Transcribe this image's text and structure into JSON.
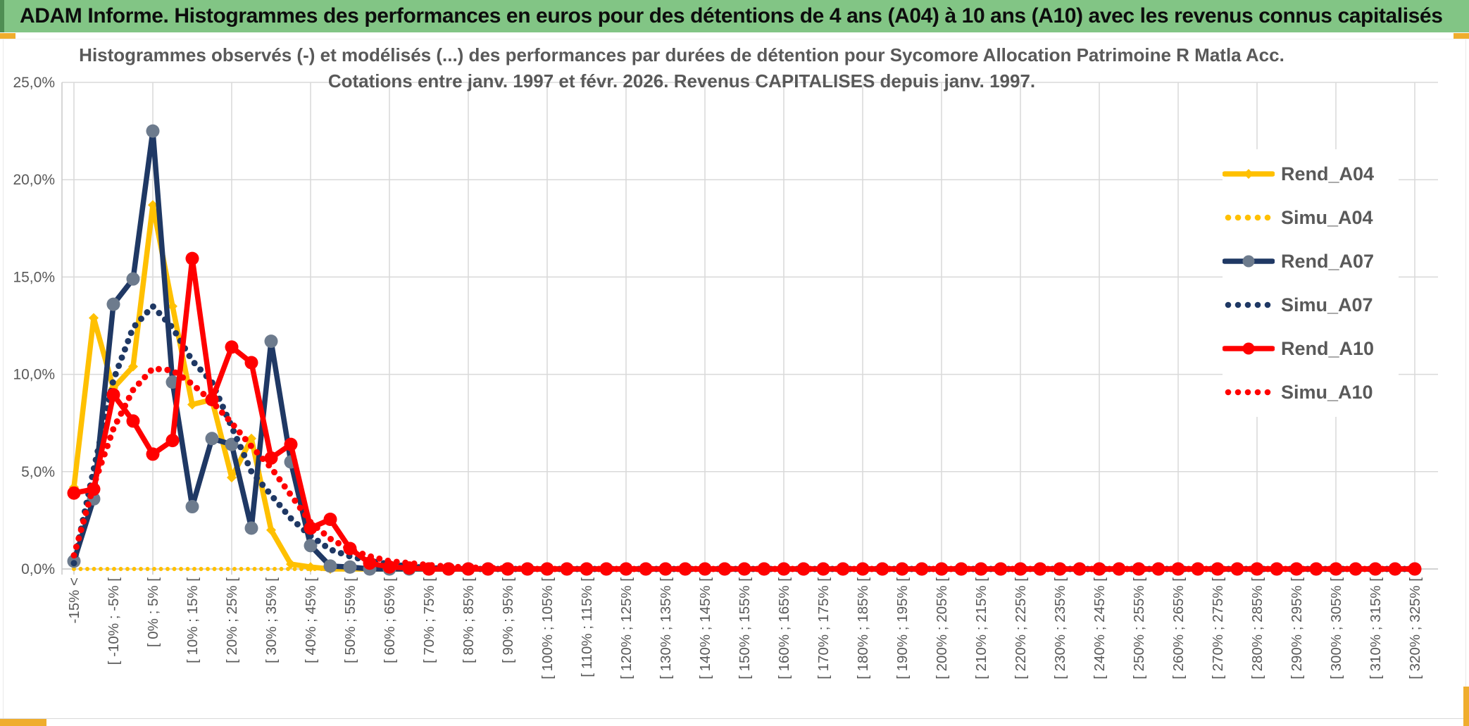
{
  "banner": {
    "title": "ADAM Informe. Histogrammes des performances en euros pour des détentions de 4 ans (A04) à 10 ans (A10) avec les revenus connus capitalisés"
  },
  "chart_data": {
    "type": "line",
    "title_line1": "Histogrammes observés (-) et modélisés (...) des performances par durées de détention pour Sycomore Allocation Patrimoine R Matla Acc.",
    "title_line2": "Cotations entre janv. 1997 et févr. 2026. Revenus CAPITALISES depuis janv. 1997.",
    "ylim": [
      0,
      25
    ],
    "ytick_labels": [
      "0,0%",
      "5,0%",
      "10,0%",
      "15,0%",
      "20,0%",
      "25,0%"
    ],
    "grid": "on",
    "legend_position": "right",
    "n_bins": 69,
    "xtick_every": 2,
    "xtick_labels": [
      "-15% <",
      "[ -10% ; -5% [",
      "[ 0% ; 5% [",
      "[ 10% ; 15% [",
      "[ 20% ; 25% [",
      "[ 30% ; 35% [",
      "[ 40% ; 45% [",
      "[ 50% ; 55% [",
      "[ 60% ; 65% [",
      "[ 70% ; 75% [",
      "[ 80% ; 85% [",
      "[ 90% ; 95% [",
      "[ 100% ; 105% [",
      "[ 110% ; 115% [",
      "[ 120% ; 125% [",
      "[ 130% ; 135% [",
      "[ 140% ; 145% [",
      "[ 150% ; 155% [",
      "[ 160% ; 165% [",
      "[ 170% ; 175% [",
      "[ 180% ; 185% [",
      "[ 190% ; 195% [",
      "[ 200% ; 205% [",
      "[ 210% ; 215% [",
      "[ 220% ; 225% [",
      "[ 230% ; 235% [",
      "[ 240% ; 245% [",
      "[ 250% ; 255% [",
      "[ 260% ; 265% [",
      "[ 270% ; 275% [",
      "[ 280% ; 285% [",
      "[ 290% ; 295% [",
      "[ 300% ; 305% [",
      "[ 310% ; 315% [",
      "[ 320% ; 325% ["
    ],
    "series": [
      {
        "name": "Rend_A04",
        "color": "#FFC000",
        "style": "solid",
        "marker": "diamond",
        "marker_color": "#FFC000",
        "values": [
          4.2,
          12.9,
          9.3,
          10.4,
          18.7,
          13.5,
          8.45,
          8.7,
          4.7,
          6.7,
          2.0,
          0.25,
          0.1,
          0,
          0,
          0,
          0,
          0,
          0,
          0,
          0,
          0,
          0,
          0,
          0,
          0,
          0,
          0,
          0,
          0,
          0,
          0,
          0,
          0,
          0,
          0,
          0,
          0,
          0,
          0,
          0,
          0,
          0,
          0,
          0,
          0,
          0,
          0,
          0,
          0,
          0,
          0,
          0,
          0,
          0,
          0,
          0,
          0,
          0,
          0,
          0,
          0,
          0,
          0,
          0,
          0,
          0,
          0,
          0
        ]
      },
      {
        "name": "Simu_A04",
        "color": "#FFC000",
        "style": "dotted",
        "values": [
          0,
          0,
          0,
          0,
          0,
          0,
          0,
          0,
          0,
          0,
          0,
          0,
          0,
          0,
          0,
          0,
          0,
          0,
          0,
          0,
          0,
          0,
          0,
          0,
          0,
          0,
          0,
          0,
          0,
          0,
          0,
          0,
          0,
          0,
          0,
          0,
          0,
          0,
          0,
          0,
          0,
          0,
          0,
          0,
          0,
          0,
          0,
          0,
          0,
          0,
          0,
          0,
          0,
          0,
          0,
          0,
          0,
          0,
          0,
          0,
          0,
          0,
          0,
          0,
          0,
          0,
          0,
          0,
          0
        ]
      },
      {
        "name": "Rend_A07",
        "color": "#1F3864",
        "style": "solid",
        "marker": "circle",
        "marker_color": "#6D7B8D",
        "values": [
          0.4,
          3.6,
          13.6,
          14.9,
          22.5,
          9.6,
          3.2,
          6.7,
          6.4,
          2.1,
          11.7,
          5.5,
          1.2,
          0.15,
          0.1,
          0,
          0,
          0,
          0,
          0,
          0,
          0,
          0,
          0,
          0,
          0,
          0,
          0,
          0,
          0,
          0,
          0,
          0,
          0,
          0,
          0,
          0,
          0,
          0,
          0,
          0,
          0,
          0,
          0,
          0,
          0,
          0,
          0,
          0,
          0,
          0,
          0,
          0,
          0,
          0,
          0,
          0,
          0,
          0,
          0,
          0,
          0,
          0,
          0,
          0,
          0,
          0,
          0,
          0
        ]
      },
      {
        "name": "Simu_A07",
        "color": "#1F3864",
        "style": "dotted",
        "values": [
          0.3,
          5.1,
          9.7,
          12.4,
          13.5,
          12.4,
          10.7,
          9.6,
          7.3,
          5.0,
          3.8,
          2.6,
          1.7,
          1.0,
          0.65,
          0.4,
          0.25,
          0.12,
          0.05,
          0,
          0,
          0,
          0,
          0,
          0,
          0,
          0,
          0,
          0,
          0,
          0,
          0,
          0,
          0,
          0,
          0,
          0,
          0,
          0,
          0,
          0,
          0,
          0,
          0,
          0,
          0,
          0,
          0,
          0,
          0,
          0,
          0,
          0,
          0,
          0,
          0,
          0,
          0,
          0,
          0,
          0,
          0,
          0,
          0,
          0,
          0,
          0,
          0,
          0
        ]
      },
      {
        "name": "Rend_A10",
        "color": "#FF0000",
        "style": "solid",
        "marker": "circle",
        "marker_color": "#FF0000",
        "values": [
          3.9,
          4.1,
          8.95,
          7.6,
          5.9,
          6.6,
          15.95,
          8.7,
          11.4,
          10.6,
          5.7,
          6.4,
          2.1,
          2.55,
          1.05,
          0.3,
          0.1,
          0.05,
          0,
          0,
          0,
          0,
          0,
          0,
          0,
          0,
          0,
          0,
          0,
          0,
          0,
          0,
          0,
          0,
          0,
          0,
          0,
          0,
          0,
          0,
          0,
          0,
          0,
          0,
          0,
          0,
          0,
          0,
          0,
          0,
          0,
          0,
          0,
          0,
          0,
          0,
          0,
          0,
          0,
          0,
          0,
          0,
          0,
          0,
          0,
          0,
          0,
          0,
          0
        ]
      },
      {
        "name": "Simu_A10",
        "color": "#FF0000",
        "style": "dotted",
        "values": [
          0.7,
          4.3,
          7.2,
          9.2,
          10.3,
          10.2,
          9.5,
          8.6,
          7.5,
          6.3,
          5.2,
          3.8,
          2.4,
          1.55,
          1.0,
          0.65,
          0.4,
          0.3,
          0.2,
          0.12,
          0.08,
          0.05,
          0.03,
          0,
          0,
          0,
          0,
          0,
          0,
          0,
          0,
          0,
          0,
          0,
          0,
          0,
          0,
          0,
          0,
          0,
          0,
          0,
          0,
          0,
          0,
          0,
          0,
          0,
          0,
          0,
          0,
          0,
          0,
          0,
          0,
          0,
          0,
          0,
          0,
          0,
          0,
          0,
          0,
          0,
          0,
          0,
          0,
          0,
          0
        ]
      }
    ],
    "colors": {
      "banner_green": "#82C585",
      "accent_yellow": "#FFC000",
      "accent_navy": "#1F3864",
      "accent_red": "#FF0000",
      "text_gray": "#595959",
      "grid_gray": "#D9D9D9",
      "corner_mark_yellow": "#EFAD2D"
    }
  }
}
